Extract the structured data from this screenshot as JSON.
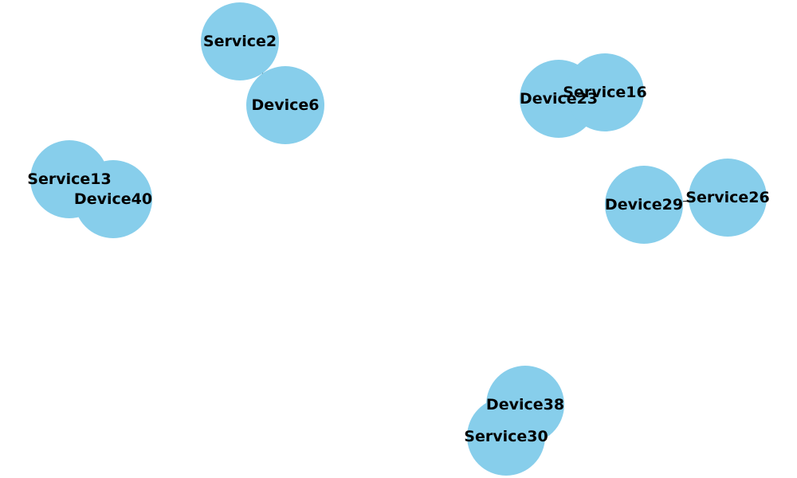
{
  "graph": {
    "node_color": "#87ceeb",
    "label_color": "#000000",
    "edge_color": "#000000",
    "nodes": [
      {
        "id": "service2",
        "label": "Service2"
      },
      {
        "id": "device6",
        "label": "Device6"
      },
      {
        "id": "device23",
        "label": "Device23"
      },
      {
        "id": "service16",
        "label": "Service16"
      },
      {
        "id": "service13",
        "label": "Service13"
      },
      {
        "id": "device40",
        "label": "Device40"
      },
      {
        "id": "device29",
        "label": "Device29"
      },
      {
        "id": "service26",
        "label": "Service26"
      },
      {
        "id": "device38",
        "label": "Device38"
      },
      {
        "id": "service30",
        "label": "Service30"
      }
    ],
    "edges": [
      {
        "from": "service2",
        "to": "device6"
      },
      {
        "from": "device23",
        "to": "service16"
      },
      {
        "from": "service13",
        "to": "device40"
      },
      {
        "from": "device29",
        "to": "service26"
      },
      {
        "from": "device38",
        "to": "service30"
      }
    ]
  }
}
